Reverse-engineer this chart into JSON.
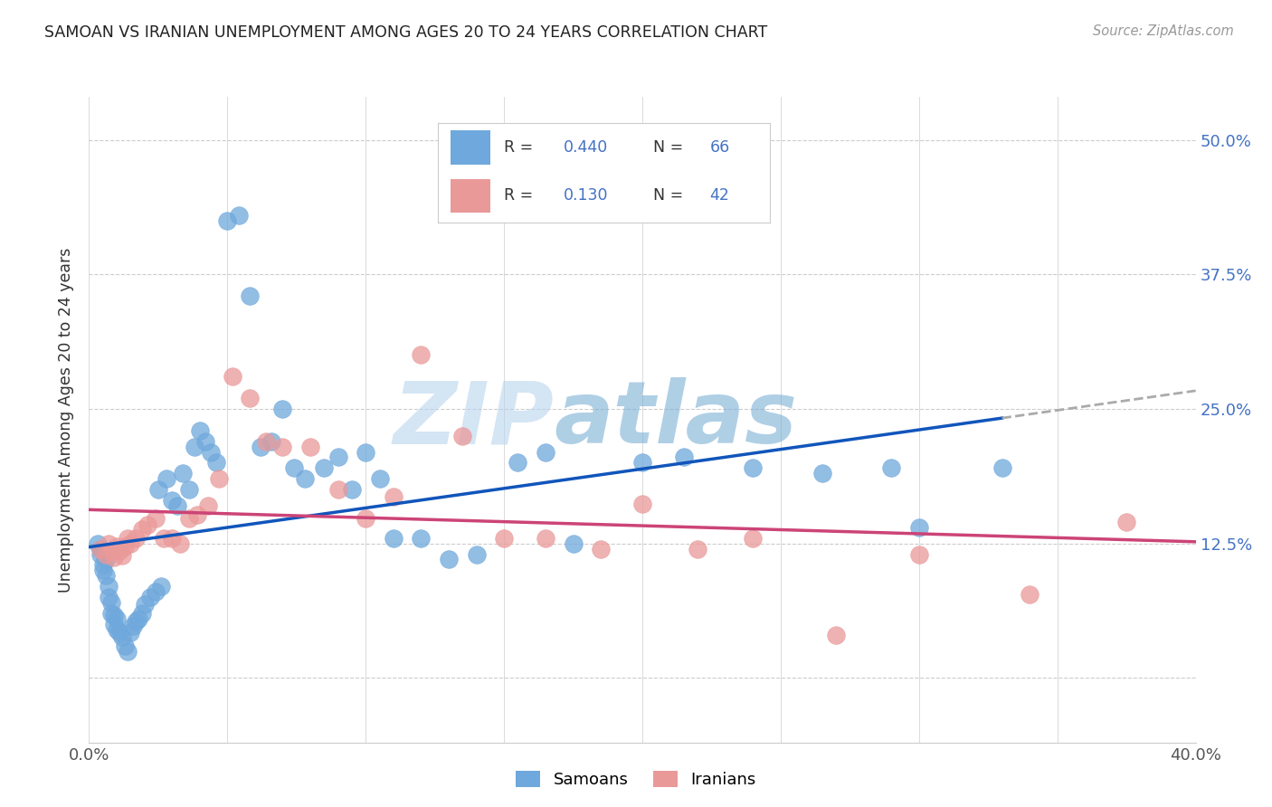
{
  "title": "SAMOAN VS IRANIAN UNEMPLOYMENT AMONG AGES 20 TO 24 YEARS CORRELATION CHART",
  "source": "Source: ZipAtlas.com",
  "ylabel": "Unemployment Among Ages 20 to 24 years",
  "xlim": [
    0.0,
    0.4
  ],
  "ylim": [
    -0.06,
    0.54
  ],
  "x_ticks": [
    0.0,
    0.05,
    0.1,
    0.15,
    0.2,
    0.25,
    0.3,
    0.35,
    0.4
  ],
  "y_ticks": [
    0.0,
    0.125,
    0.25,
    0.375,
    0.5
  ],
  "y_tick_labels_right": [
    "",
    "12.5%",
    "25.0%",
    "37.5%",
    "50.0%"
  ],
  "samoan_color": "#6fa8dc",
  "iranian_color": "#ea9999",
  "samoan_line_color": "#1155bb",
  "iranian_line_color": "#cc4477",
  "dashed_line_color": "#aaaaaa",
  "background_color": "#ffffff",
  "grid_color": "#cccccc",
  "watermark_zip": "ZIP",
  "watermark_atlas": "atlas",
  "watermark_color_zip": "#b8d4ee",
  "watermark_color_atlas": "#7aafd4",
  "legend_R_samoan": "0.440",
  "legend_N_samoan": "66",
  "legend_R_iranian": "0.130",
  "legend_N_iranian": "42",
  "samoan_x": [
    0.003,
    0.004,
    0.004,
    0.005,
    0.005,
    0.006,
    0.006,
    0.007,
    0.007,
    0.008,
    0.008,
    0.009,
    0.009,
    0.01,
    0.01,
    0.011,
    0.012,
    0.013,
    0.014,
    0.015,
    0.016,
    0.017,
    0.018,
    0.019,
    0.02,
    0.022,
    0.024,
    0.025,
    0.026,
    0.028,
    0.03,
    0.032,
    0.034,
    0.036,
    0.038,
    0.04,
    0.042,
    0.044,
    0.046,
    0.05,
    0.054,
    0.058,
    0.062,
    0.066,
    0.07,
    0.074,
    0.078,
    0.085,
    0.09,
    0.095,
    0.1,
    0.105,
    0.11,
    0.12,
    0.13,
    0.14,
    0.155,
    0.165,
    0.175,
    0.2,
    0.215,
    0.24,
    0.265,
    0.29,
    0.3,
    0.33
  ],
  "samoan_y": [
    0.125,
    0.12,
    0.115,
    0.105,
    0.1,
    0.11,
    0.095,
    0.085,
    0.075,
    0.06,
    0.07,
    0.05,
    0.058,
    0.045,
    0.055,
    0.042,
    0.038,
    0.03,
    0.025,
    0.042,
    0.048,
    0.052,
    0.055,
    0.06,
    0.068,
    0.075,
    0.08,
    0.175,
    0.085,
    0.185,
    0.165,
    0.16,
    0.19,
    0.175,
    0.215,
    0.23,
    0.22,
    0.21,
    0.2,
    0.425,
    0.43,
    0.355,
    0.215,
    0.22,
    0.25,
    0.195,
    0.185,
    0.195,
    0.205,
    0.175,
    0.21,
    0.185,
    0.13,
    0.13,
    0.11,
    0.115,
    0.2,
    0.21,
    0.125,
    0.2,
    0.205,
    0.195,
    0.19,
    0.195,
    0.14,
    0.195
  ],
  "iranian_x": [
    0.004,
    0.006,
    0.007,
    0.008,
    0.009,
    0.01,
    0.011,
    0.012,
    0.013,
    0.014,
    0.015,
    0.017,
    0.019,
    0.021,
    0.024,
    0.027,
    0.03,
    0.033,
    0.036,
    0.039,
    0.043,
    0.047,
    0.052,
    0.058,
    0.064,
    0.07,
    0.08,
    0.09,
    0.1,
    0.11,
    0.12,
    0.135,
    0.15,
    0.165,
    0.185,
    0.2,
    0.22,
    0.24,
    0.27,
    0.3,
    0.34,
    0.375
  ],
  "iranian_y": [
    0.12,
    0.115,
    0.125,
    0.118,
    0.112,
    0.122,
    0.118,
    0.114,
    0.122,
    0.13,
    0.125,
    0.13,
    0.138,
    0.142,
    0.148,
    0.13,
    0.13,
    0.125,
    0.148,
    0.152,
    0.16,
    0.185,
    0.28,
    0.26,
    0.22,
    0.215,
    0.215,
    0.175,
    0.148,
    0.168,
    0.3,
    0.225,
    0.13,
    0.13,
    0.12,
    0.162,
    0.12,
    0.13,
    0.04,
    0.115,
    0.078,
    0.145
  ]
}
